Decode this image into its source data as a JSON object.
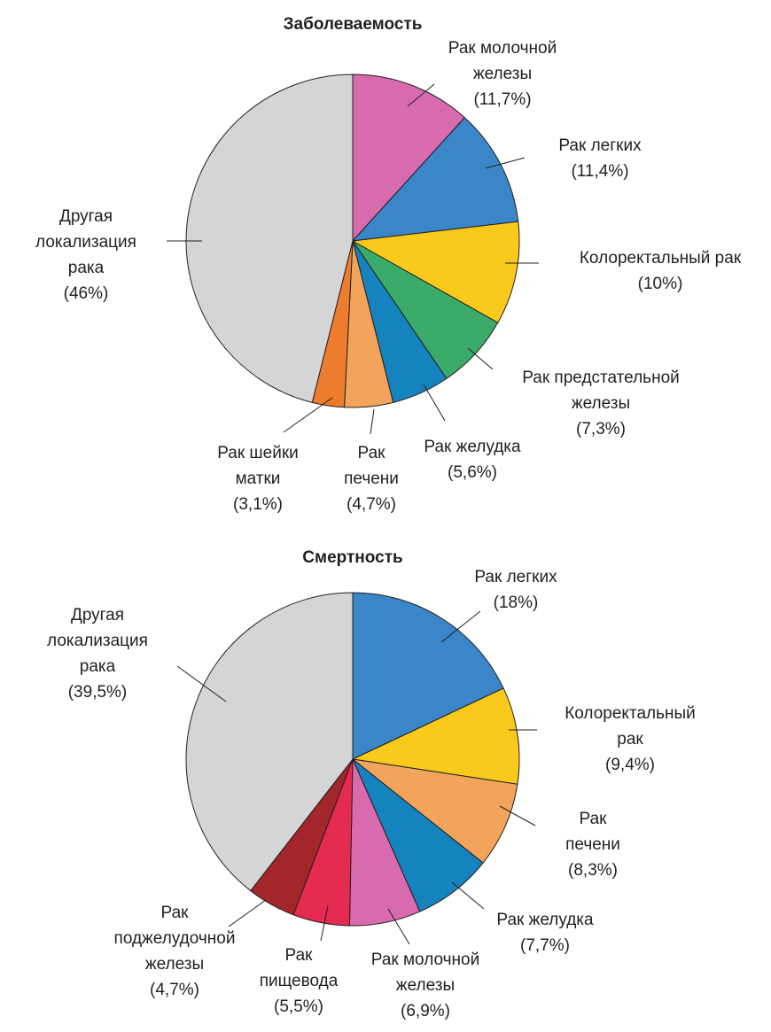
{
  "chart_data": [
    {
      "type": "pie",
      "title": "Заболеваемость",
      "slices": [
        {
          "label_lines": [
            "Рак молочной",
            "железы",
            "(11,7%)"
          ],
          "value": 11.7,
          "color": "#d86aae"
        },
        {
          "label_lines": [
            "Рак легких",
            "(11,4%)"
          ],
          "value": 11.4,
          "color": "#3a86c8"
        },
        {
          "label_lines": [
            "Колоректальный рак",
            "(10%)"
          ],
          "value": 10.0,
          "color": "#f9ca1b"
        },
        {
          "label_lines": [
            "Рак предстательной",
            "железы",
            "(7,3%)"
          ],
          "value": 7.3,
          "color": "#3bab6a"
        },
        {
          "label_lines": [
            "Рак желудка",
            "(5,6%)"
          ],
          "value": 5.6,
          "color": "#1583bd"
        },
        {
          "label_lines": [
            "Рак",
            "печени",
            "(4,7%)"
          ],
          "value": 4.7,
          "color": "#f2a55a"
        },
        {
          "label_lines": [
            "Рак шейки",
            "матки",
            "(3,1%)"
          ],
          "value": 3.1,
          "color": "#ee7c2d"
        },
        {
          "label_lines": [
            "Другая",
            "локализация",
            "рака",
            "(46%)"
          ],
          "value": 46.0,
          "color": "#d4d5d7"
        }
      ]
    },
    {
      "type": "pie",
      "title": "Смертность",
      "slices": [
        {
          "label_lines": [
            "Рак легких",
            "(18%)"
          ],
          "value": 18.0,
          "color": "#3a86c8"
        },
        {
          "label_lines": [
            "Колоректальный",
            "рак",
            "(9,4%)"
          ],
          "value": 9.4,
          "color": "#f9ca1b"
        },
        {
          "label_lines": [
            "Рак",
            "печени",
            "(8,3%)"
          ],
          "value": 8.3,
          "color": "#f2a55a"
        },
        {
          "label_lines": [
            "Рак желудка",
            "(7,7%)"
          ],
          "value": 7.7,
          "color": "#1583bd"
        },
        {
          "label_lines": [
            "Рак молочной",
            "железы",
            "(6,9%)"
          ],
          "value": 6.9,
          "color": "#d86aae"
        },
        {
          "label_lines": [
            "Рак",
            "пищевода",
            "(5,5%)"
          ],
          "value": 5.5,
          "color": "#e52b50"
        },
        {
          "label_lines": [
            "Рак",
            "поджелудочной",
            "железы",
            "(4,7%)"
          ],
          "value": 4.7,
          "color": "#a3262a"
        },
        {
          "label_lines": [
            "Другая",
            "локализация",
            "рака",
            "(39,5%)"
          ],
          "value": 39.5,
          "color": "#d4d5d7"
        }
      ]
    }
  ]
}
